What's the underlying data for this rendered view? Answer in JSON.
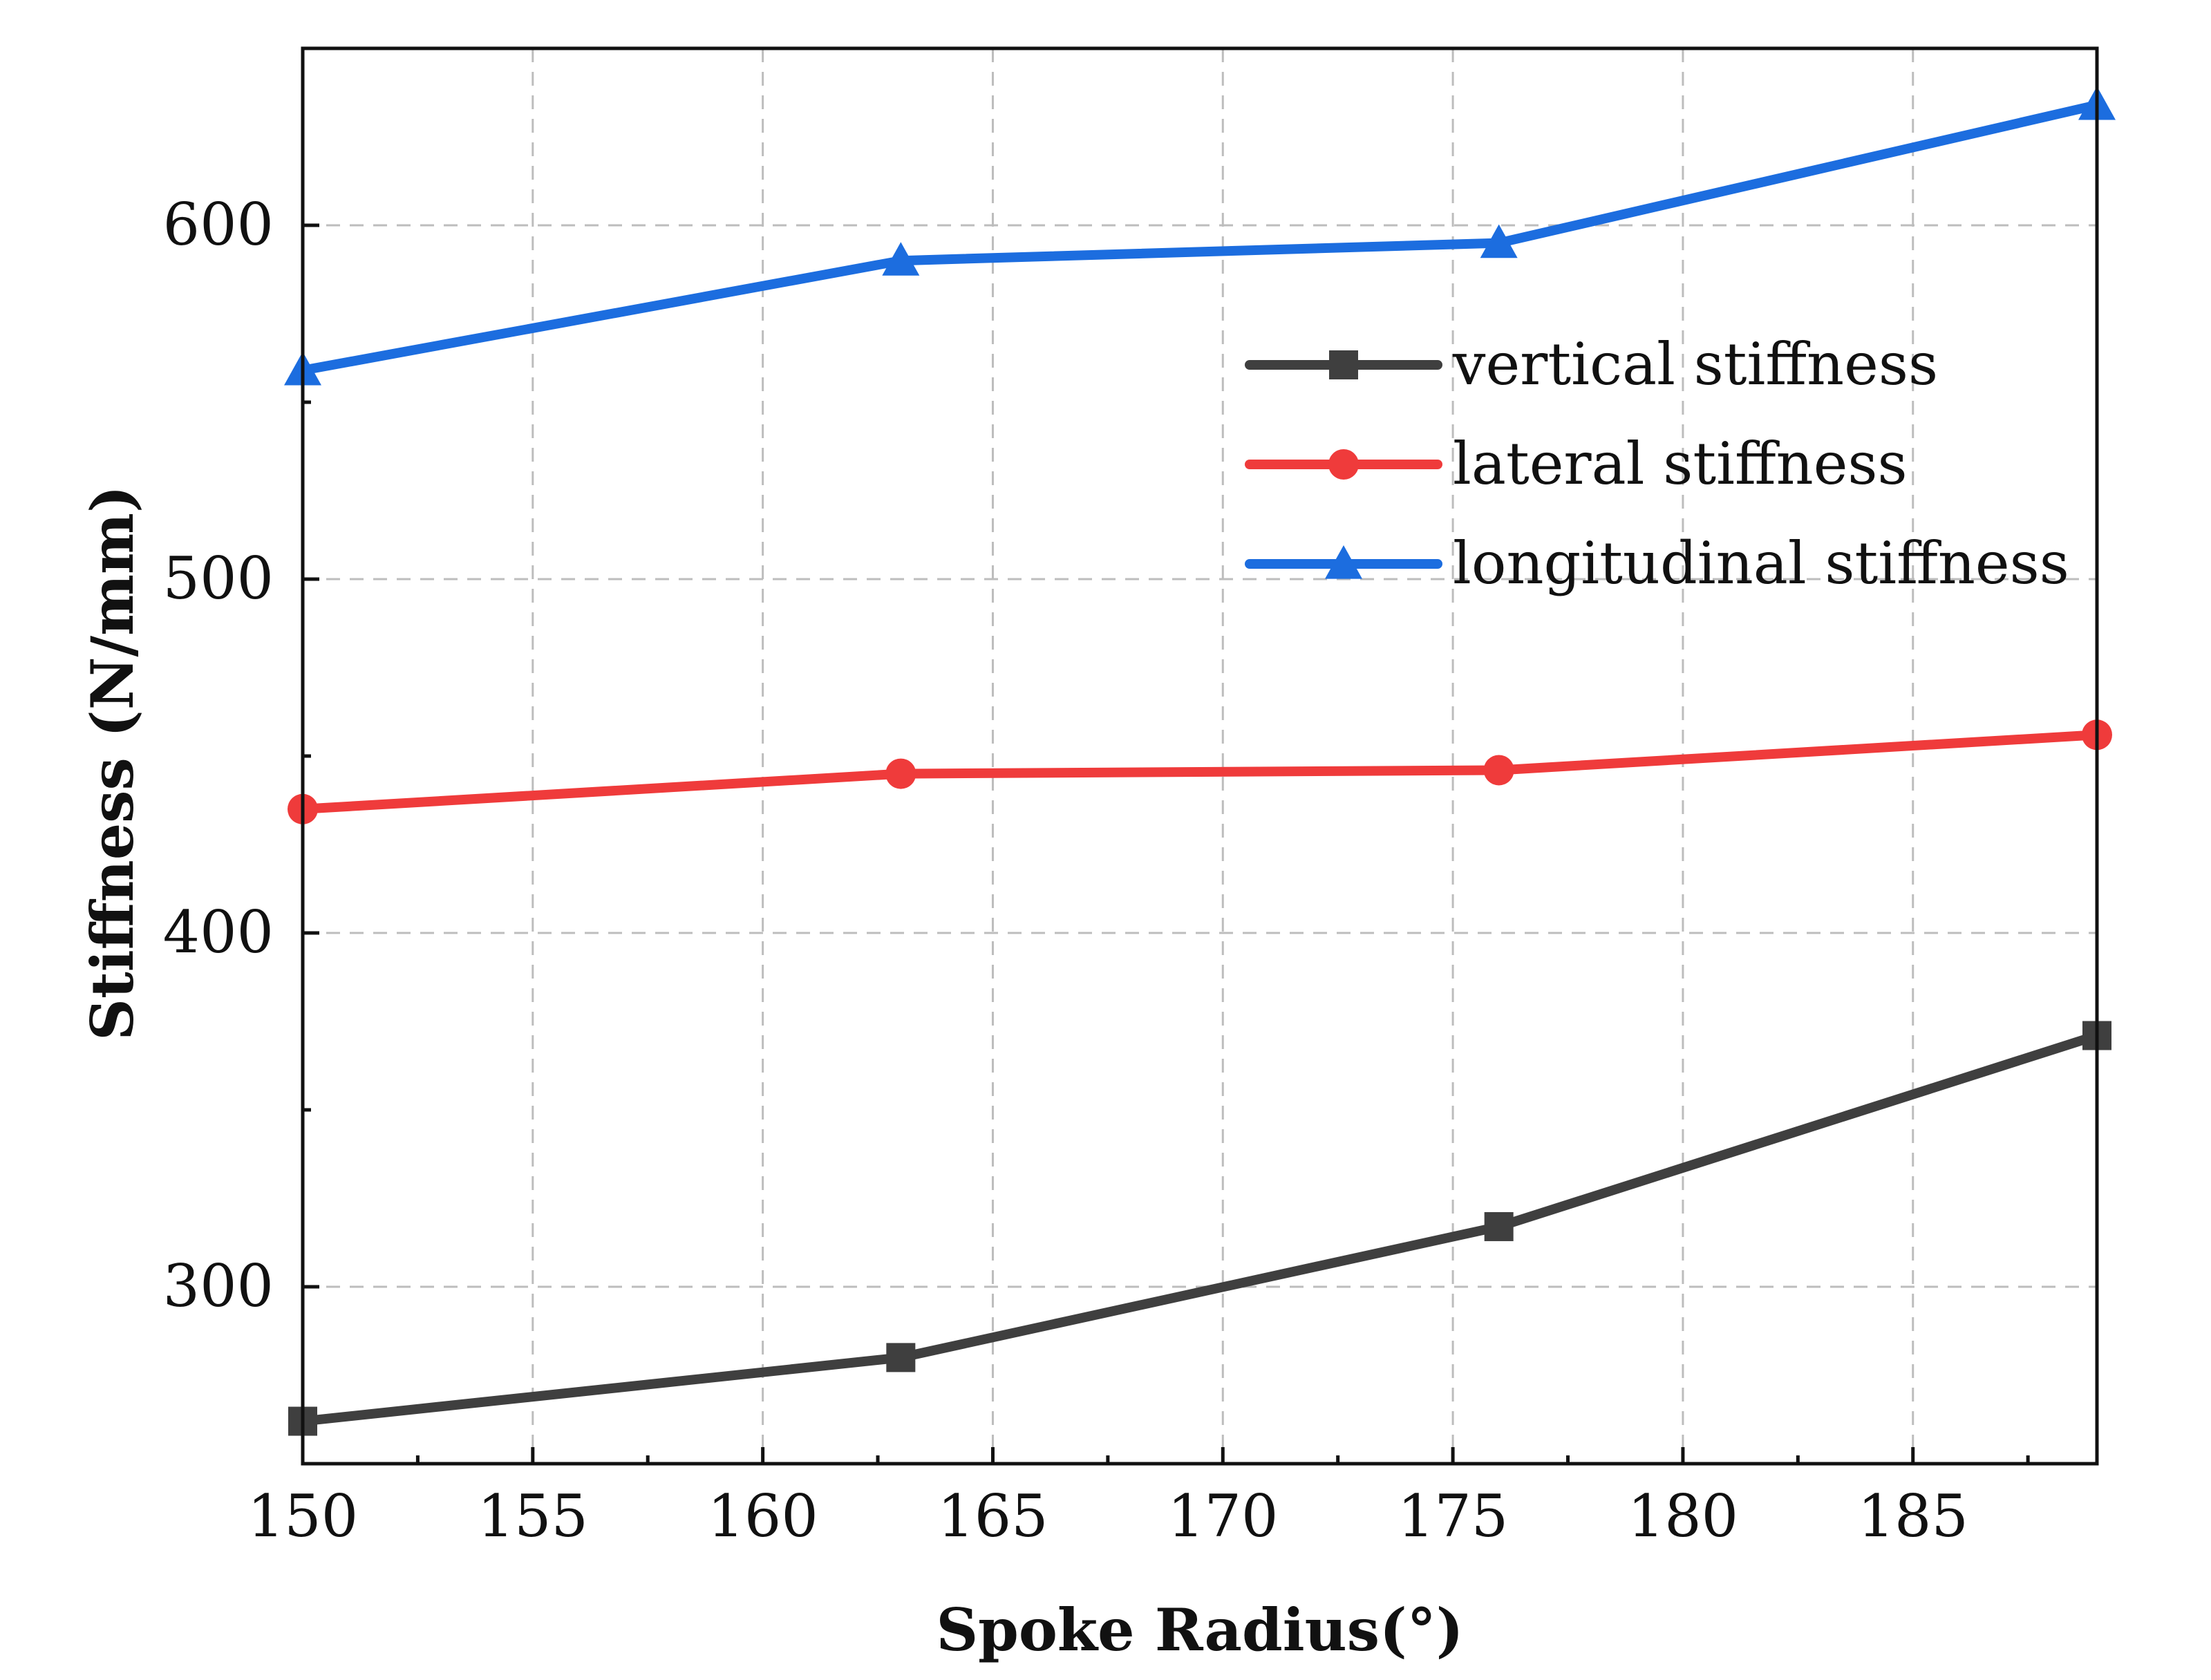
{
  "chart_data": {
    "type": "line",
    "title": "",
    "xlabel": "Spoke Radius(°)",
    "ylabel": "Stiffness (N/mm)",
    "x": [
      150,
      163,
      176,
      189
    ],
    "xlim": [
      150,
      189
    ],
    "ylim": [
      250,
      650
    ],
    "xticks": [
      150,
      155,
      160,
      165,
      170,
      175,
      180,
      185
    ],
    "yticks": [
      300,
      400,
      500,
      600
    ],
    "grid": true,
    "legend_position": "top-right",
    "series": [
      {
        "name": "vertical stiffness",
        "values": [
          262,
          280,
          317,
          371
        ],
        "color": "#3f3f3f",
        "marker": "square"
      },
      {
        "name": "lateral stiffness",
        "values": [
          435,
          445,
          446,
          456
        ],
        "color": "#ef3b3b",
        "marker": "circle"
      },
      {
        "name": "longitudinal stiffness",
        "values": [
          559,
          590,
          595,
          634
        ],
        "color": "#1c6ddf",
        "marker": "triangle"
      }
    ]
  }
}
